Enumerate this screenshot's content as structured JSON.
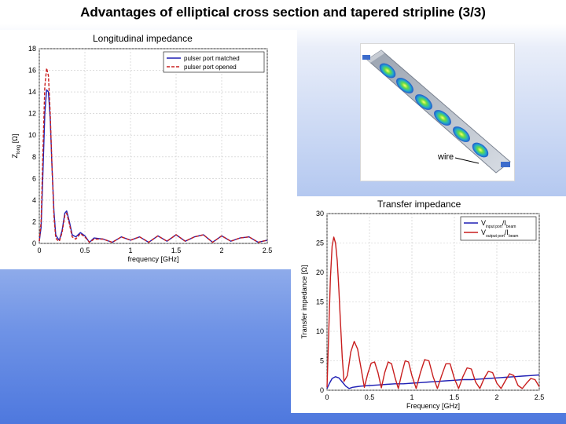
{
  "slide": {
    "title": "Advantages of elliptical cross section and tapered stripline (3/3)"
  },
  "colors": {
    "series_blue": "#1f1fb4",
    "series_red": "#c81e1e",
    "grid": "#c8c8c8"
  },
  "model_image": {
    "label": "wire"
  },
  "chart_data": [
    {
      "type": "line",
      "title": "Longitudinal impedance",
      "xlabel": "frequency [GHz]",
      "ylabel": "Z",
      "ylabel_sub": "long",
      "ylabel_unit": " [Ω]",
      "xlim": [
        0,
        2.5
      ],
      "ylim": [
        0,
        18
      ],
      "xticks": [
        0,
        0.5,
        1,
        1.5,
        2,
        2.5
      ],
      "xtick_labels": [
        "0",
        "0.5",
        "1",
        "1.5",
        "2",
        "2.5"
      ],
      "yticks": [
        0,
        2,
        4,
        6,
        8,
        10,
        12,
        14,
        16,
        18
      ],
      "grid": true,
      "legend_position": "top-right",
      "series": [
        {
          "name": "pulser port matched",
          "color": "#1f1fb4",
          "dash": "solid",
          "x": [
            0,
            0.02,
            0.04,
            0.06,
            0.08,
            0.1,
            0.12,
            0.14,
            0.16,
            0.18,
            0.2,
            0.22,
            0.25,
            0.28,
            0.3,
            0.33,
            0.36,
            0.4,
            0.45,
            0.5,
            0.55,
            0.6,
            0.7,
            0.8,
            0.9,
            1.0,
            1.1,
            1.2,
            1.3,
            1.4,
            1.5,
            1.6,
            1.7,
            1.8,
            1.9,
            2.0,
            2.1,
            2.2,
            2.3,
            2.4,
            2.5
          ],
          "y": [
            0.2,
            1.5,
            6.5,
            12.0,
            14.2,
            14.0,
            11.5,
            7.0,
            3.0,
            0.8,
            0.5,
            0.3,
            1.2,
            2.8,
            3.0,
            2.0,
            0.8,
            0.6,
            1.0,
            0.7,
            0.1,
            0.5,
            0.4,
            0.1,
            0.6,
            0.3,
            0.6,
            0.1,
            0.7,
            0.2,
            0.8,
            0.2,
            0.6,
            0.8,
            0.1,
            0.7,
            0.2,
            0.5,
            0.6,
            0.1,
            0.3
          ]
        },
        {
          "name": "pulser port opened",
          "color": "#c81e1e",
          "dash": "dashed",
          "x": [
            0,
            0.02,
            0.04,
            0.06,
            0.08,
            0.1,
            0.12,
            0.14,
            0.16,
            0.18,
            0.2,
            0.22,
            0.25,
            0.28,
            0.3,
            0.33,
            0.36,
            0.4,
            0.45,
            0.5,
            0.55,
            0.6,
            0.7,
            0.8,
            0.9,
            1.0,
            1.1,
            1.2,
            1.3,
            1.4,
            1.5,
            1.6,
            1.7,
            1.8,
            1.9,
            2.0,
            2.1,
            2.2,
            2.3,
            2.4,
            2.5
          ],
          "y": [
            0.2,
            2.0,
            8.5,
            14.5,
            16.2,
            15.5,
            12.0,
            7.0,
            2.5,
            0.5,
            0.3,
            0.2,
            1.0,
            2.6,
            2.8,
            1.8,
            0.6,
            0.4,
            0.9,
            0.6,
            0.1,
            0.4,
            0.4,
            0.1,
            0.6,
            0.3,
            0.6,
            0.1,
            0.7,
            0.2,
            0.8,
            0.2,
            0.6,
            0.8,
            0.1,
            0.7,
            0.2,
            0.5,
            0.6,
            0.1,
            0.3
          ]
        }
      ]
    },
    {
      "type": "line",
      "title": "Transfer impedance",
      "xlabel": "Frequency [GHz]",
      "ylabel": "Transfer impedance [Ω]",
      "xlim": [
        0,
        2.5
      ],
      "ylim": [
        0,
        30
      ],
      "xticks": [
        0,
        0.5,
        1,
        1.5,
        2,
        2.5
      ],
      "xtick_labels": [
        "0",
        "0.5",
        "1",
        "1.5",
        "2",
        "2.5"
      ],
      "yticks": [
        0,
        5,
        10,
        15,
        20,
        25,
        30
      ],
      "grid": true,
      "legend_position": "top-right",
      "series": [
        {
          "name": "V",
          "name_sub": "input port",
          "name_mid": "/I",
          "name_sub2": "beam",
          "color": "#1f1fb4",
          "dash": "solid",
          "x": [
            0,
            0.03,
            0.06,
            0.1,
            0.14,
            0.18,
            0.22,
            0.26,
            0.3,
            0.35,
            0.4,
            0.5,
            0.6,
            0.7,
            0.8,
            0.9,
            1.0,
            1.1,
            1.2,
            1.3,
            1.4,
            1.5,
            1.6,
            1.7,
            1.8,
            1.9,
            2.0,
            2.1,
            2.2,
            2.3,
            2.4,
            2.5
          ],
          "y": [
            0.3,
            1.2,
            2.0,
            2.3,
            2.1,
            1.4,
            0.7,
            0.3,
            0.5,
            0.6,
            0.7,
            0.8,
            0.9,
            1.0,
            1.1,
            1.1,
            1.2,
            1.3,
            1.4,
            1.5,
            1.6,
            1.7,
            1.8,
            1.8,
            1.9,
            2.0,
            2.1,
            2.2,
            2.3,
            2.4,
            2.5,
            2.6
          ]
        },
        {
          "name": "V",
          "name_sub": "output port",
          "name_mid": "/I",
          "name_sub2": "beam",
          "color": "#c81e1e",
          "dash": "solid",
          "x": [
            0,
            0.02,
            0.04,
            0.06,
            0.08,
            0.1,
            0.12,
            0.14,
            0.16,
            0.18,
            0.2,
            0.24,
            0.28,
            0.32,
            0.36,
            0.4,
            0.44,
            0.48,
            0.52,
            0.56,
            0.6,
            0.64,
            0.68,
            0.72,
            0.76,
            0.8,
            0.84,
            0.88,
            0.92,
            0.96,
            1.0,
            1.05,
            1.1,
            1.15,
            1.2,
            1.25,
            1.3,
            1.35,
            1.4,
            1.45,
            1.5,
            1.55,
            1.6,
            1.65,
            1.7,
            1.75,
            1.8,
            1.85,
            1.9,
            1.95,
            2.0,
            2.05,
            2.1,
            2.15,
            2.2,
            2.25,
            2.3,
            2.35,
            2.4,
            2.45,
            2.5
          ],
          "y": [
            0.5,
            10.0,
            19.0,
            24.5,
            26.0,
            25.0,
            22.0,
            17.0,
            11.0,
            5.5,
            1.5,
            2.5,
            6.5,
            8.3,
            7.0,
            3.8,
            0.5,
            2.8,
            4.6,
            4.8,
            3.0,
            0.4,
            3.0,
            4.8,
            4.5,
            2.2,
            0.3,
            2.8,
            5.0,
            4.8,
            2.5,
            0.3,
            3.0,
            5.2,
            5.0,
            2.3,
            0.3,
            2.5,
            4.5,
            4.5,
            2.0,
            0.3,
            2.3,
            3.8,
            3.6,
            1.4,
            0.3,
            2.0,
            3.2,
            3.0,
            1.2,
            0.3,
            1.6,
            2.8,
            2.5,
            0.8,
            0.3,
            1.2,
            2.0,
            1.8,
            0.6
          ]
        }
      ]
    }
  ]
}
